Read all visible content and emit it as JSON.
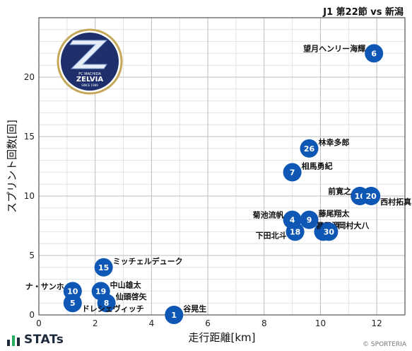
{
  "header": {
    "title": "J1 第22節 vs 新潟"
  },
  "brand": {
    "name": "STATs"
  },
  "copyright": "© SPORTERIA",
  "logo": {
    "line1": "FC MACHIDA",
    "line2": "ZELVIA",
    "line3": "SINCE 1989"
  },
  "colors": {
    "marker": "#0f57b5",
    "grid_major": "#bdbdbd",
    "grid_minor": "#e2e2e2",
    "logo_navy": "#1e2f6b",
    "logo_gold": "#c5a75a"
  },
  "chart_data": {
    "type": "scatter",
    "xlabel": "走行距離[km]",
    "ylabel": "スプリント回数[回]",
    "xlim": [
      0,
      13
    ],
    "ylim": [
      0,
      25
    ],
    "xticks": [
      0,
      2,
      4,
      6,
      8,
      10,
      12
    ],
    "yticks": [
      0,
      5,
      10,
      15,
      20
    ],
    "grid": true,
    "points": [
      {
        "number": "6",
        "name": "望月ヘンリー海輝",
        "x": 11.9,
        "y": 22,
        "label_side": "left"
      },
      {
        "number": "26",
        "name": "林幸多郎",
        "x": 9.6,
        "y": 14,
        "label_side": "right"
      },
      {
        "number": "7",
        "name": "相馬勇紀",
        "x": 9.0,
        "y": 12,
        "label_side": "right"
      },
      {
        "number": "16",
        "name": "前寛之",
        "x": 11.4,
        "y": 10,
        "label_side": "left"
      },
      {
        "number": "20",
        "name": "西村拓真",
        "x": 11.8,
        "y": 10,
        "label_side": "below-right"
      },
      {
        "number": "4",
        "name": "菊池流帆",
        "x": 9.0,
        "y": 8,
        "label_side": "left"
      },
      {
        "number": "9",
        "name": "藤尾翔太",
        "x": 9.6,
        "y": 8,
        "label_side": "right"
      },
      {
        "number": "18",
        "name": "下田北斗",
        "x": 9.1,
        "y": 7,
        "label_side": "below-left"
      },
      {
        "number": "3",
        "name": "昌子源",
        "x": 10.1,
        "y": 7,
        "label_side": "above-left"
      },
      {
        "number": "30",
        "name": "岡村大八",
        "x": 10.3,
        "y": 7,
        "label_side": "right"
      },
      {
        "number": "15",
        "name": "ミッチェルデューク",
        "x": 2.3,
        "y": 4,
        "label_side": "right"
      },
      {
        "number": "10",
        "name": "ナ・サンホ",
        "x": 1.2,
        "y": 2,
        "label_side": "left"
      },
      {
        "number": "19",
        "name": "中山雄太",
        "x": 2.2,
        "y": 2,
        "label_side": "right"
      },
      {
        "number": "8",
        "name": "仙頭啓矢",
        "x": 2.4,
        "y": 1,
        "label_side": "right"
      },
      {
        "number": "5",
        "name": "ドレシェヴィッチ",
        "x": 1.2,
        "y": 1,
        "label_side": "below-right"
      },
      {
        "number": "1",
        "name": "谷晃生",
        "x": 4.8,
        "y": 0,
        "label_side": "right"
      }
    ]
  }
}
